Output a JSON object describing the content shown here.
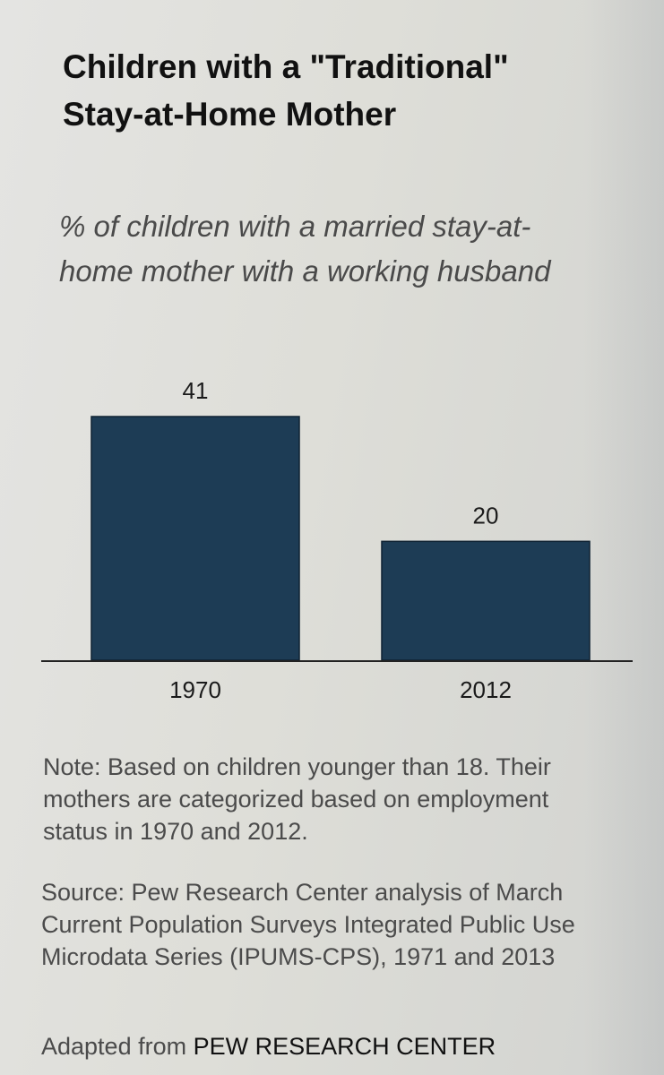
{
  "title": "Children with a \"Traditional\" Stay-at-Home Mother",
  "subtitle": "% of children with a married stay-at-home mother with a working husband",
  "chart_data": {
    "type": "bar",
    "categories": [
      "1970",
      "2012"
    ],
    "values": [
      41,
      20
    ],
    "value_labels": [
      "41",
      "20"
    ],
    "ylim": [
      0,
      41
    ],
    "grid": false,
    "bar_color": "#1d3c55"
  },
  "note": "Note: Based on children younger than 18. Their mothers are categorized based on employment status in 1970 and 2012.",
  "source": "Source: Pew Research Center analysis of March Current Population Surveys Integrated Public Use Microdata Series (IPUMS-CPS), 1971 and 2013",
  "credit": {
    "prefix": "Adapted from",
    "org": "PEW RESEARCH CENTER"
  }
}
